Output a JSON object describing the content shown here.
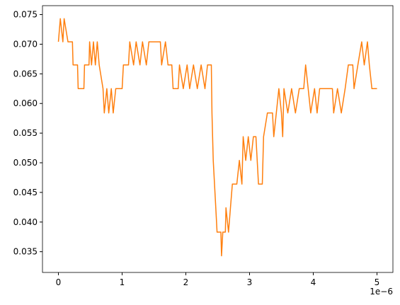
{
  "chart_data": {
    "type": "line",
    "x": [
      0,
      0.03,
      0.07,
      0.09,
      0.15,
      0.22,
      0.23,
      0.3,
      0.31,
      0.4,
      0.41,
      0.48,
      0.49,
      0.52,
      0.55,
      0.58,
      0.61,
      0.64,
      0.7,
      0.72,
      0.76,
      0.79,
      0.83,
      0.86,
      0.9,
      1.0,
      1.02,
      1.1,
      1.12,
      1.18,
      1.22,
      1.28,
      1.32,
      1.38,
      1.42,
      1.5,
      1.6,
      1.62,
      1.68,
      1.72,
      1.78,
      1.8,
      1.88,
      1.9,
      1.96,
      2.02,
      2.06,
      2.12,
      2.18,
      2.24,
      2.3,
      2.34,
      2.4,
      2.41,
      2.43,
      2.45,
      2.47,
      2.49,
      2.55,
      2.56,
      2.58,
      2.62,
      2.63,
      2.67,
      2.7,
      2.73,
      2.8,
      2.84,
      2.88,
      2.9,
      2.94,
      2.98,
      3.02,
      3.06,
      3.1,
      3.12,
      3.14,
      3.2,
      3.22,
      3.28,
      3.36,
      3.38,
      3.42,
      3.46,
      3.5,
      3.52,
      3.54,
      3.6,
      3.66,
      3.72,
      3.78,
      3.85,
      3.88,
      3.92,
      3.96,
      4.02,
      4.06,
      4.1,
      4.2,
      4.3,
      4.32,
      4.38,
      4.44,
      4.5,
      4.55,
      4.62,
      4.64,
      4.7,
      4.76,
      4.8,
      4.85,
      4.88,
      4.92,
      5.0
    ],
    "series": [
      {
        "color": "#ff7f0e",
        "values": [
          0.0704,
          0.0743,
          0.0704,
          0.0743,
          0.0704,
          0.0704,
          0.0665,
          0.0665,
          0.0625,
          0.0625,
          0.0665,
          0.0665,
          0.0704,
          0.0665,
          0.0704,
          0.0665,
          0.0704,
          0.0665,
          0.0625,
          0.0584,
          0.0625,
          0.0584,
          0.0625,
          0.0584,
          0.0625,
          0.0625,
          0.0665,
          0.0665,
          0.0704,
          0.0665,
          0.0704,
          0.0665,
          0.0704,
          0.0665,
          0.0704,
          0.0704,
          0.0704,
          0.0665,
          0.0704,
          0.0665,
          0.0665,
          0.0625,
          0.0625,
          0.0665,
          0.0625,
          0.0665,
          0.0625,
          0.0665,
          0.0625,
          0.0665,
          0.0625,
          0.0665,
          0.0665,
          0.0584,
          0.0504,
          0.0464,
          0.0424,
          0.0383,
          0.0383,
          0.0343,
          0.0383,
          0.0383,
          0.0424,
          0.0383,
          0.0424,
          0.0464,
          0.0464,
          0.0504,
          0.0464,
          0.0544,
          0.0504,
          0.0544,
          0.0504,
          0.0544,
          0.0544,
          0.0504,
          0.0464,
          0.0464,
          0.0544,
          0.0584,
          0.0584,
          0.0544,
          0.0584,
          0.0625,
          0.0584,
          0.0544,
          0.0625,
          0.0584,
          0.0625,
          0.0584,
          0.0625,
          0.0625,
          0.0665,
          0.0625,
          0.0584,
          0.0625,
          0.0584,
          0.0625,
          0.0625,
          0.0625,
          0.0584,
          0.0625,
          0.0584,
          0.0625,
          0.0665,
          0.0665,
          0.0625,
          0.0665,
          0.0704,
          0.0665,
          0.0704,
          0.0665,
          0.0625,
          0.0625
        ]
      }
    ],
    "xlim": [
      -0.25,
      5.25
    ],
    "xticks": [
      0,
      1,
      2,
      3,
      4,
      5
    ],
    "x_offset_label": "1e−6",
    "ylim": [
      0.0315,
      0.0765
    ],
    "yticks": [
      {
        "value": 0.035,
        "label": "0.035"
      },
      {
        "value": 0.04,
        "label": "0.040"
      },
      {
        "value": 0.045,
        "label": "0.045"
      },
      {
        "value": 0.05,
        "label": "0.050"
      },
      {
        "value": 0.055,
        "label": "0.055"
      },
      {
        "value": 0.06,
        "label": "0.060"
      },
      {
        "value": 0.065,
        "label": "0.065"
      },
      {
        "value": 0.07,
        "label": "0.070"
      },
      {
        "value": 0.075,
        "label": "0.075"
      }
    ],
    "grid": false
  }
}
